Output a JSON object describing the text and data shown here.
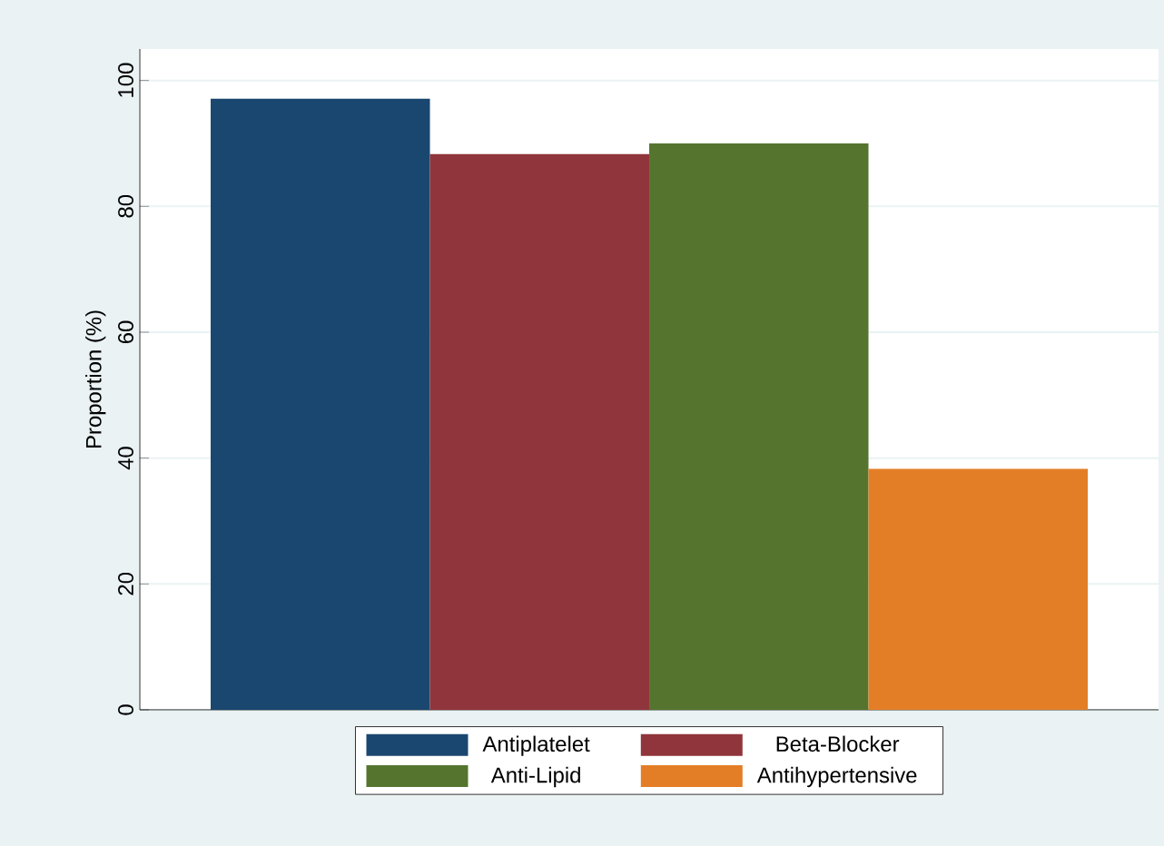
{
  "chart_data": {
    "type": "bar",
    "ylabel": "Proportion (%)",
    "categories": [
      null
    ],
    "series": [
      {
        "name": "Antiplatelet",
        "color": "#1a476f",
        "values": [
          97.1
        ]
      },
      {
        "name": "Beta-Blocker",
        "color": "#90353b",
        "values": [
          88.3
        ]
      },
      {
        "name": "Anti-Lipid",
        "color": "#55752f",
        "values": [
          90.0
        ]
      },
      {
        "name": "Antihypertensive",
        "color": "#e37e26",
        "values": [
          38.3
        ]
      }
    ],
    "ylim": [
      0,
      105
    ],
    "yticks": [
      0,
      20,
      40,
      60,
      80,
      100
    ],
    "grid": "y",
    "legend": "bottom",
    "tick_labels": "y"
  }
}
